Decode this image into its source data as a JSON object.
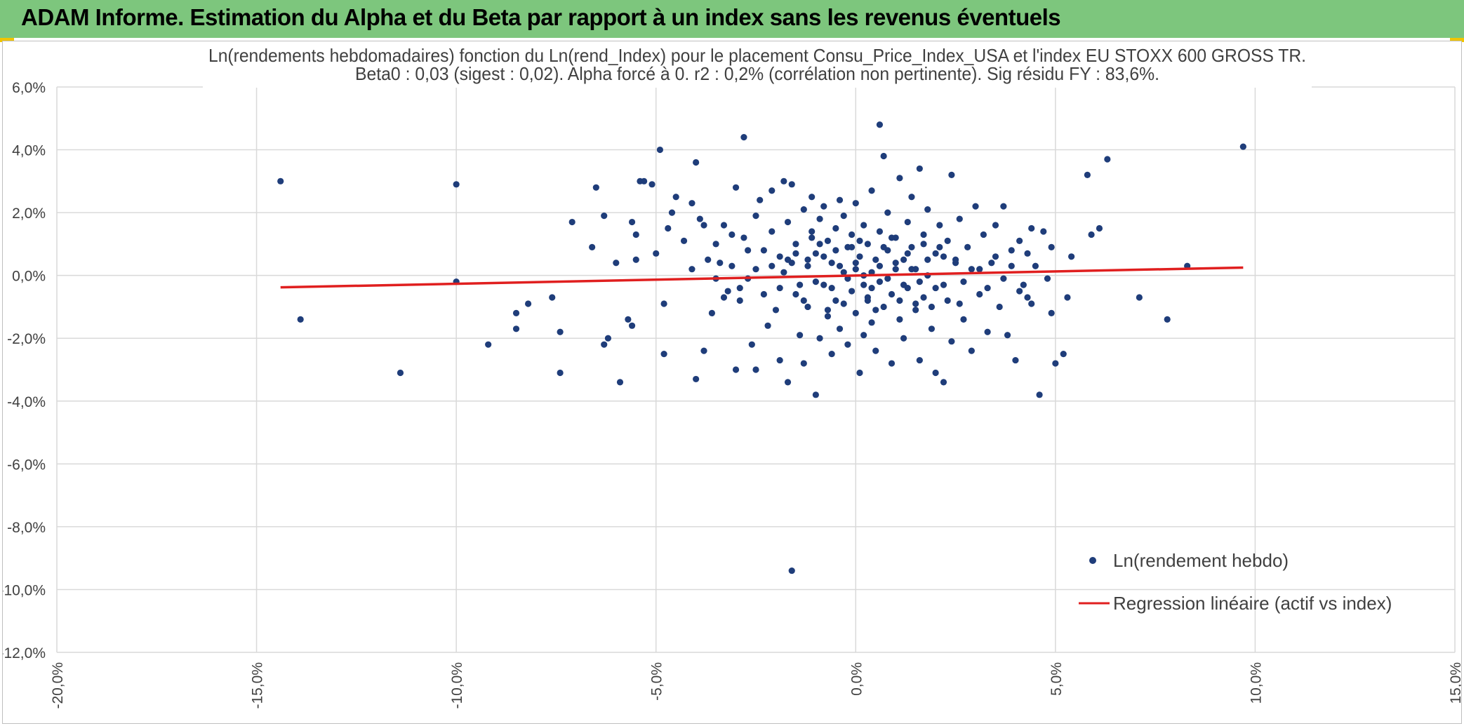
{
  "header": {
    "title": "ADAM Informe. Estimation du Alpha et du Beta par rapport à un index sans les revenus éventuels"
  },
  "colors": {
    "header_bg": "#7dc67d",
    "points": "#1f3d7a",
    "regression": "#e01f1f",
    "grid": "#d9d9d9",
    "text": "#404040",
    "accent": "#f0c400"
  },
  "chart_data": {
    "type": "scatter",
    "title": "Ln(rendements hebdomadaires) fonction du Ln(rend_Index) pour le placement Consu_Price_Index_USA et l'index EU STOXX 600 GROSS TR.",
    "subtitle": "Beta0 : 0,03 (sigest : 0,02). Alpha forcé à 0. r2 : 0,2% (corrélation non pertinente). Sig résidu FY : 83,6%.",
    "xlabel": "",
    "ylabel": "",
    "xlim": [
      -0.2,
      0.15
    ],
    "ylim": [
      -0.12,
      0.06
    ],
    "x_ticks": [
      -0.2,
      -0.15,
      -0.1,
      -0.05,
      0.0,
      0.05,
      0.1,
      0.15
    ],
    "y_ticks": [
      0.06,
      0.04,
      0.02,
      0.0,
      -0.02,
      -0.04,
      -0.06,
      -0.08,
      -0.1,
      -0.12
    ],
    "x_tick_labels": [
      "-20,0%",
      "-15,0%",
      "-10,0%",
      "-5,0%",
      "0,0%",
      "5,0%",
      "10,0%",
      "15,0%"
    ],
    "y_tick_labels": [
      "6,0%",
      "4,0%",
      "2,0%",
      "0,0%",
      "-2,0%",
      "-4,0%",
      "-6,0%",
      "-8,0%",
      "-10,0%",
      "-12,0%"
    ],
    "grid": true,
    "legend_position": "bottom-right",
    "series": [
      {
        "name": "Ln(rendement hebdo)",
        "kind": "scatter",
        "color": "#1f3d7a",
        "points": [
          [
            -0.144,
            0.03
          ],
          [
            -0.139,
            -0.014
          ],
          [
            -0.114,
            -0.031
          ],
          [
            -0.1,
            0.029
          ],
          [
            -0.1,
            -0.002
          ],
          [
            -0.092,
            -0.022
          ],
          [
            -0.085,
            -0.012
          ],
          [
            -0.085,
            -0.017
          ],
          [
            -0.082,
            -0.009
          ],
          [
            -0.076,
            -0.007
          ],
          [
            -0.074,
            -0.018
          ],
          [
            -0.074,
            -0.031
          ],
          [
            -0.071,
            0.017
          ],
          [
            -0.066,
            0.009
          ],
          [
            -0.065,
            0.028
          ],
          [
            -0.063,
            0.019
          ],
          [
            -0.063,
            -0.022
          ],
          [
            -0.062,
            -0.02
          ],
          [
            -0.06,
            0.004
          ],
          [
            -0.059,
            -0.034
          ],
          [
            -0.057,
            -0.014
          ],
          [
            -0.056,
            -0.016
          ],
          [
            -0.056,
            0.017
          ],
          [
            -0.055,
            0.013
          ],
          [
            -0.055,
            0.005
          ],
          [
            -0.054,
            0.03
          ],
          [
            -0.053,
            0.03
          ],
          [
            -0.051,
            0.029
          ],
          [
            -0.05,
            0.007
          ],
          [
            -0.049,
            0.04
          ],
          [
            -0.048,
            -0.025
          ],
          [
            -0.048,
            -0.009
          ],
          [
            -0.047,
            0.015
          ],
          [
            -0.046,
            0.02
          ],
          [
            -0.045,
            0.025
          ],
          [
            -0.043,
            0.011
          ],
          [
            -0.041,
            0.002
          ],
          [
            -0.041,
            0.023
          ],
          [
            -0.04,
            0.036
          ],
          [
            -0.04,
            -0.033
          ],
          [
            -0.039,
            0.018
          ],
          [
            -0.038,
            0.016
          ],
          [
            -0.038,
            -0.024
          ],
          [
            -0.037,
            0.005
          ],
          [
            -0.036,
            -0.012
          ],
          [
            -0.035,
            0.01
          ],
          [
            -0.034,
            0.004
          ],
          [
            -0.033,
            0.016
          ],
          [
            -0.032,
            -0.005
          ],
          [
            -0.031,
            0.013
          ],
          [
            -0.03,
            0.028
          ],
          [
            -0.03,
            -0.03
          ],
          [
            -0.029,
            -0.008
          ],
          [
            -0.028,
            0.044
          ],
          [
            -0.028,
            0.012
          ],
          [
            -0.027,
            -0.001
          ],
          [
            -0.026,
            -0.022
          ],
          [
            -0.025,
            0.019
          ],
          [
            -0.025,
            -0.03
          ],
          [
            -0.024,
            0.024
          ],
          [
            -0.023,
            0.008
          ],
          [
            -0.022,
            -0.016
          ],
          [
            -0.021,
            0.014
          ],
          [
            -0.021,
            0.027
          ],
          [
            -0.02,
            -0.011
          ],
          [
            -0.019,
            0.006
          ],
          [
            -0.019,
            -0.027
          ],
          [
            -0.018,
            0.03
          ],
          [
            -0.018,
            0.001
          ],
          [
            -0.017,
            -0.034
          ],
          [
            -0.017,
            0.017
          ],
          [
            -0.016,
            -0.094
          ],
          [
            -0.016,
            0.029
          ],
          [
            -0.015,
            -0.006
          ],
          [
            -0.015,
            0.01
          ],
          [
            -0.014,
            -0.019
          ],
          [
            -0.013,
            0.021
          ],
          [
            -0.013,
            -0.028
          ],
          [
            -0.012,
            0.003
          ],
          [
            -0.012,
            -0.01
          ],
          [
            -0.011,
            0.014
          ],
          [
            -0.011,
            0.025
          ],
          [
            -0.01,
            -0.038
          ],
          [
            -0.01,
            0.007
          ],
          [
            -0.009,
            -0.02
          ],
          [
            -0.009,
            0.018
          ],
          [
            -0.008,
            -0.003
          ],
          [
            -0.008,
            0.022
          ],
          [
            -0.007,
            -0.013
          ],
          [
            -0.007,
            0.011
          ],
          [
            -0.006,
            -0.025
          ],
          [
            -0.006,
            0.004
          ],
          [
            -0.005,
            0.015
          ],
          [
            -0.005,
            -0.008
          ],
          [
            -0.004,
            0.024
          ],
          [
            -0.004,
            -0.017
          ],
          [
            -0.003,
            0.001
          ],
          [
            -0.003,
            0.019
          ],
          [
            -0.002,
            -0.022
          ],
          [
            -0.002,
            0.009
          ],
          [
            -0.001,
            -0.005
          ],
          [
            -0.001,
            0.013
          ],
          [
            0.0,
            -0.012
          ],
          [
            0.0,
            0.002
          ],
          [
            0.0,
            0.023
          ],
          [
            0.001,
            -0.031
          ],
          [
            0.001,
            0.006
          ],
          [
            0.002,
            -0.003
          ],
          [
            0.002,
            0.016
          ],
          [
            0.002,
            -0.019
          ],
          [
            0.003,
            0.01
          ],
          [
            0.003,
            -0.008
          ],
          [
            0.004,
            0.001
          ],
          [
            0.004,
            0.027
          ],
          [
            0.004,
            -0.015
          ],
          [
            0.005,
            0.005
          ],
          [
            0.005,
            -0.024
          ],
          [
            0.006,
            0.014
          ],
          [
            0.006,
            -0.002
          ],
          [
            0.006,
            0.048
          ],
          [
            0.007,
            0.038
          ],
          [
            0.007,
            -0.01
          ],
          [
            0.008,
            0.008
          ],
          [
            0.008,
            0.02
          ],
          [
            0.009,
            -0.006
          ],
          [
            0.009,
            -0.028
          ],
          [
            0.01,
            0.012
          ],
          [
            0.01,
            0.002
          ],
          [
            0.011,
            -0.014
          ],
          [
            0.011,
            0.031
          ],
          [
            0.012,
            0.005
          ],
          [
            0.012,
            -0.02
          ],
          [
            0.013,
            0.017
          ],
          [
            0.013,
            -0.004
          ],
          [
            0.014,
            0.009
          ],
          [
            0.014,
            0.025
          ],
          [
            0.015,
            -0.011
          ],
          [
            0.015,
            0.002
          ],
          [
            0.016,
            0.034
          ],
          [
            0.016,
            -0.027
          ],
          [
            0.017,
            0.013
          ],
          [
            0.017,
            -0.007
          ],
          [
            0.018,
            0.021
          ],
          [
            0.018,
            0.0
          ],
          [
            0.019,
            -0.017
          ],
          [
            0.02,
            0.007
          ],
          [
            0.02,
            -0.031
          ],
          [
            0.021,
            0.016
          ],
          [
            0.022,
            -0.003
          ],
          [
            0.022,
            -0.034
          ],
          [
            0.023,
            0.011
          ],
          [
            0.024,
            -0.021
          ],
          [
            0.024,
            0.032
          ],
          [
            0.025,
            0.004
          ],
          [
            0.026,
            -0.009
          ],
          [
            0.026,
            0.018
          ],
          [
            0.027,
            -0.014
          ],
          [
            0.028,
            0.009
          ],
          [
            0.029,
            -0.024
          ],
          [
            0.029,
            0.002
          ],
          [
            0.03,
            0.022
          ],
          [
            0.031,
            -0.006
          ],
          [
            0.032,
            0.013
          ],
          [
            0.033,
            -0.018
          ],
          [
            0.034,
            0.004
          ],
          [
            0.035,
            0.016
          ],
          [
            0.036,
            -0.01
          ],
          [
            0.037,
            0.022
          ],
          [
            0.038,
            -0.019
          ],
          [
            0.039,
            0.008
          ],
          [
            0.04,
            -0.027
          ],
          [
            0.041,
            0.011
          ],
          [
            0.042,
            -0.003
          ],
          [
            0.043,
            -0.007
          ],
          [
            0.044,
            0.015
          ],
          [
            0.045,
            0.003
          ],
          [
            0.046,
            -0.038
          ],
          [
            0.047,
            0.014
          ],
          [
            0.048,
            -0.001
          ],
          [
            0.049,
            0.009
          ],
          [
            0.049,
            -0.012
          ],
          [
            0.05,
            -0.028
          ],
          [
            0.052,
            -0.025
          ],
          [
            0.053,
            -0.007
          ],
          [
            0.054,
            0.006
          ],
          [
            0.058,
            0.032
          ],
          [
            0.059,
            0.013
          ],
          [
            0.061,
            0.015
          ],
          [
            0.063,
            0.037
          ],
          [
            0.071,
            -0.007
          ],
          [
            0.078,
            -0.014
          ],
          [
            0.083,
            0.003
          ],
          [
            0.097,
            0.041
          ],
          [
            -0.012,
            0.005
          ],
          [
            -0.01,
            -0.002
          ],
          [
            -0.008,
            0.006
          ],
          [
            -0.006,
            -0.004
          ],
          [
            -0.004,
            0.003
          ],
          [
            -0.002,
            -0.001
          ],
          [
            0.0,
            0.004
          ],
          [
            0.002,
            0.0
          ],
          [
            0.004,
            -0.004
          ],
          [
            0.006,
            0.003
          ],
          [
            0.008,
            -0.001
          ],
          [
            0.01,
            0.004
          ],
          [
            0.012,
            -0.003
          ],
          [
            0.014,
            0.002
          ],
          [
            0.016,
            -0.002
          ],
          [
            0.018,
            0.005
          ],
          [
            -0.014,
            -0.003
          ],
          [
            -0.016,
            0.004
          ],
          [
            0.02,
            -0.004
          ],
          [
            0.022,
            0.006
          ],
          [
            -0.005,
            0.008
          ],
          [
            0.003,
            -0.007
          ],
          [
            0.007,
            0.009
          ],
          [
            0.011,
            -0.008
          ],
          [
            -0.009,
            0.01
          ],
          [
            0.001,
            0.011
          ],
          [
            0.005,
            -0.011
          ],
          [
            0.009,
            0.012
          ],
          [
            -0.003,
            -0.009
          ],
          [
            0.013,
            0.007
          ],
          [
            -0.011,
            0.012
          ],
          [
            0.015,
            -0.009
          ],
          [
            -0.007,
            -0.011
          ],
          [
            0.017,
            0.01
          ],
          [
            -0.001,
            0.009
          ],
          [
            0.019,
            -0.01
          ],
          [
            -0.013,
            -0.008
          ],
          [
            0.021,
            0.009
          ],
          [
            -0.015,
            0.007
          ],
          [
            0.023,
            -0.008
          ],
          [
            -0.017,
            0.005
          ],
          [
            0.025,
            0.005
          ],
          [
            -0.019,
            -0.004
          ],
          [
            0.027,
            -0.002
          ],
          [
            0.031,
            0.002
          ],
          [
            0.033,
            -0.004
          ],
          [
            -0.021,
            0.003
          ],
          [
            -0.023,
            -0.006
          ],
          [
            0.035,
            0.006
          ],
          [
            0.037,
            -0.001
          ],
          [
            -0.025,
            0.002
          ],
          [
            -0.027,
            0.008
          ],
          [
            0.039,
            0.003
          ],
          [
            0.041,
            -0.005
          ],
          [
            -0.029,
            -0.004
          ],
          [
            -0.031,
            0.003
          ],
          [
            0.043,
            0.007
          ],
          [
            -0.033,
            -0.007
          ],
          [
            0.044,
            -0.009
          ],
          [
            -0.035,
            -0.001
          ]
        ]
      },
      {
        "name": "Regression linéaire (actif vs index)",
        "kind": "line",
        "color": "#e01f1f",
        "points": [
          [
            -0.144,
            -0.0038
          ],
          [
            0.097,
            0.0025
          ]
        ]
      }
    ]
  }
}
